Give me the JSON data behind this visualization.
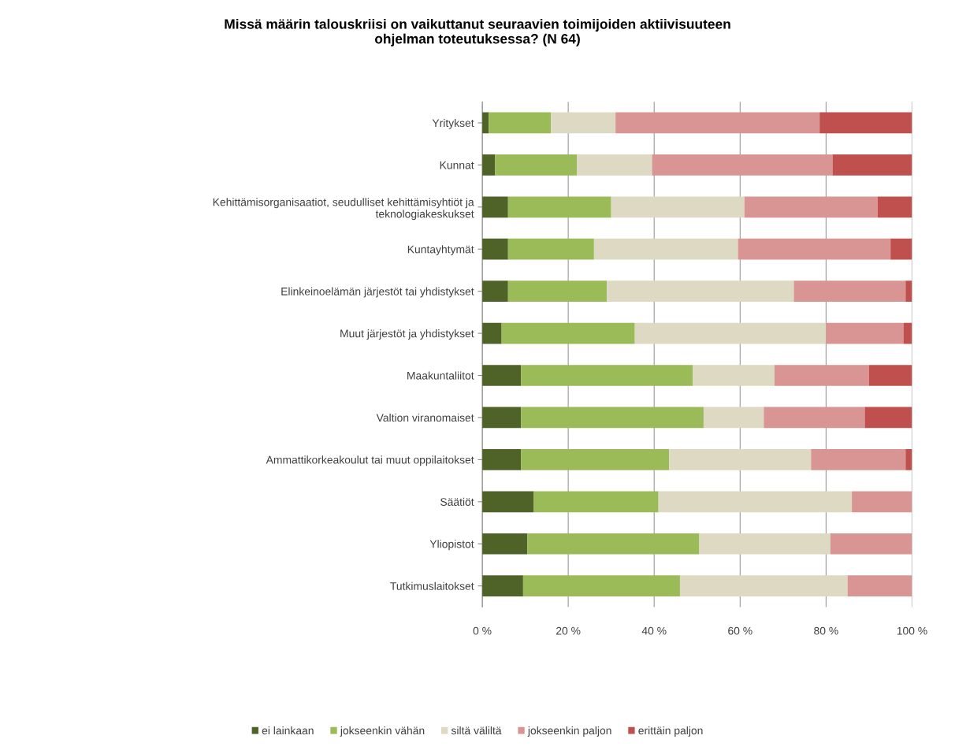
{
  "chart_data": {
    "type": "bar",
    "orientation": "horizontal",
    "stacked": true,
    "title": "Missä määrin talouskriisi on vaikuttanut seuraavien toimijoiden aktiivisuuteen\nohjelman toteutuksessa? (N 64)",
    "categories": [
      "Yritykset",
      "Kunnat",
      "Kehittämisorganisaatiot, seudulliset kehittämisyhtiöt ja\nteknologiakeskukset",
      "Kuntayhtymät",
      "Elinkeinoelämän järjestöt tai yhdistykset",
      "Muut järjestöt ja yhdistykset",
      "Maakuntaliitot",
      "Valtion viranomaiset",
      "Ammattikorkeakoulut tai muut oppilaitokset",
      "Säätiöt",
      "Yliopistot",
      "Tutkimuslaitokset"
    ],
    "series": [
      {
        "name": "ei lainkaan",
        "color": "#4f6228",
        "values": [
          1.5,
          3,
          6,
          6,
          6,
          4.5,
          9,
          9,
          9,
          12,
          10.5,
          9.5
        ]
      },
      {
        "name": "jokseenkin vähän",
        "color": "#9bbb59",
        "values": [
          14.5,
          19,
          24,
          20,
          23,
          31,
          40,
          42.5,
          34.5,
          29,
          40,
          36.5
        ]
      },
      {
        "name": "siltä väliltä",
        "color": "#ddd9c3",
        "values": [
          15,
          17.5,
          31,
          33.5,
          43.5,
          44.5,
          19,
          14,
          33,
          45,
          30.5,
          39
        ]
      },
      {
        "name": "jokseenkin paljon",
        "color": "#d99594",
        "values": [
          47.5,
          42,
          31,
          35.5,
          26,
          18,
          22,
          23.5,
          22,
          14,
          19,
          15
        ]
      },
      {
        "name": "erittäin paljon",
        "color": "#c0504d",
        "values": [
          21.5,
          18.5,
          8,
          5,
          1.5,
          2,
          10,
          11,
          1.5,
          0,
          0,
          0
        ]
      }
    ],
    "xlim": [
      0,
      100
    ],
    "xticks": [
      {
        "value": 0,
        "label": "0 %"
      },
      {
        "value": 20,
        "label": "20 %"
      },
      {
        "value": 40,
        "label": "40 %"
      },
      {
        "value": 60,
        "label": "60 %"
      },
      {
        "value": 80,
        "label": "80 %"
      },
      {
        "value": 100,
        "label": "100 %"
      }
    ],
    "grid": "x",
    "legend": "bottom"
  }
}
